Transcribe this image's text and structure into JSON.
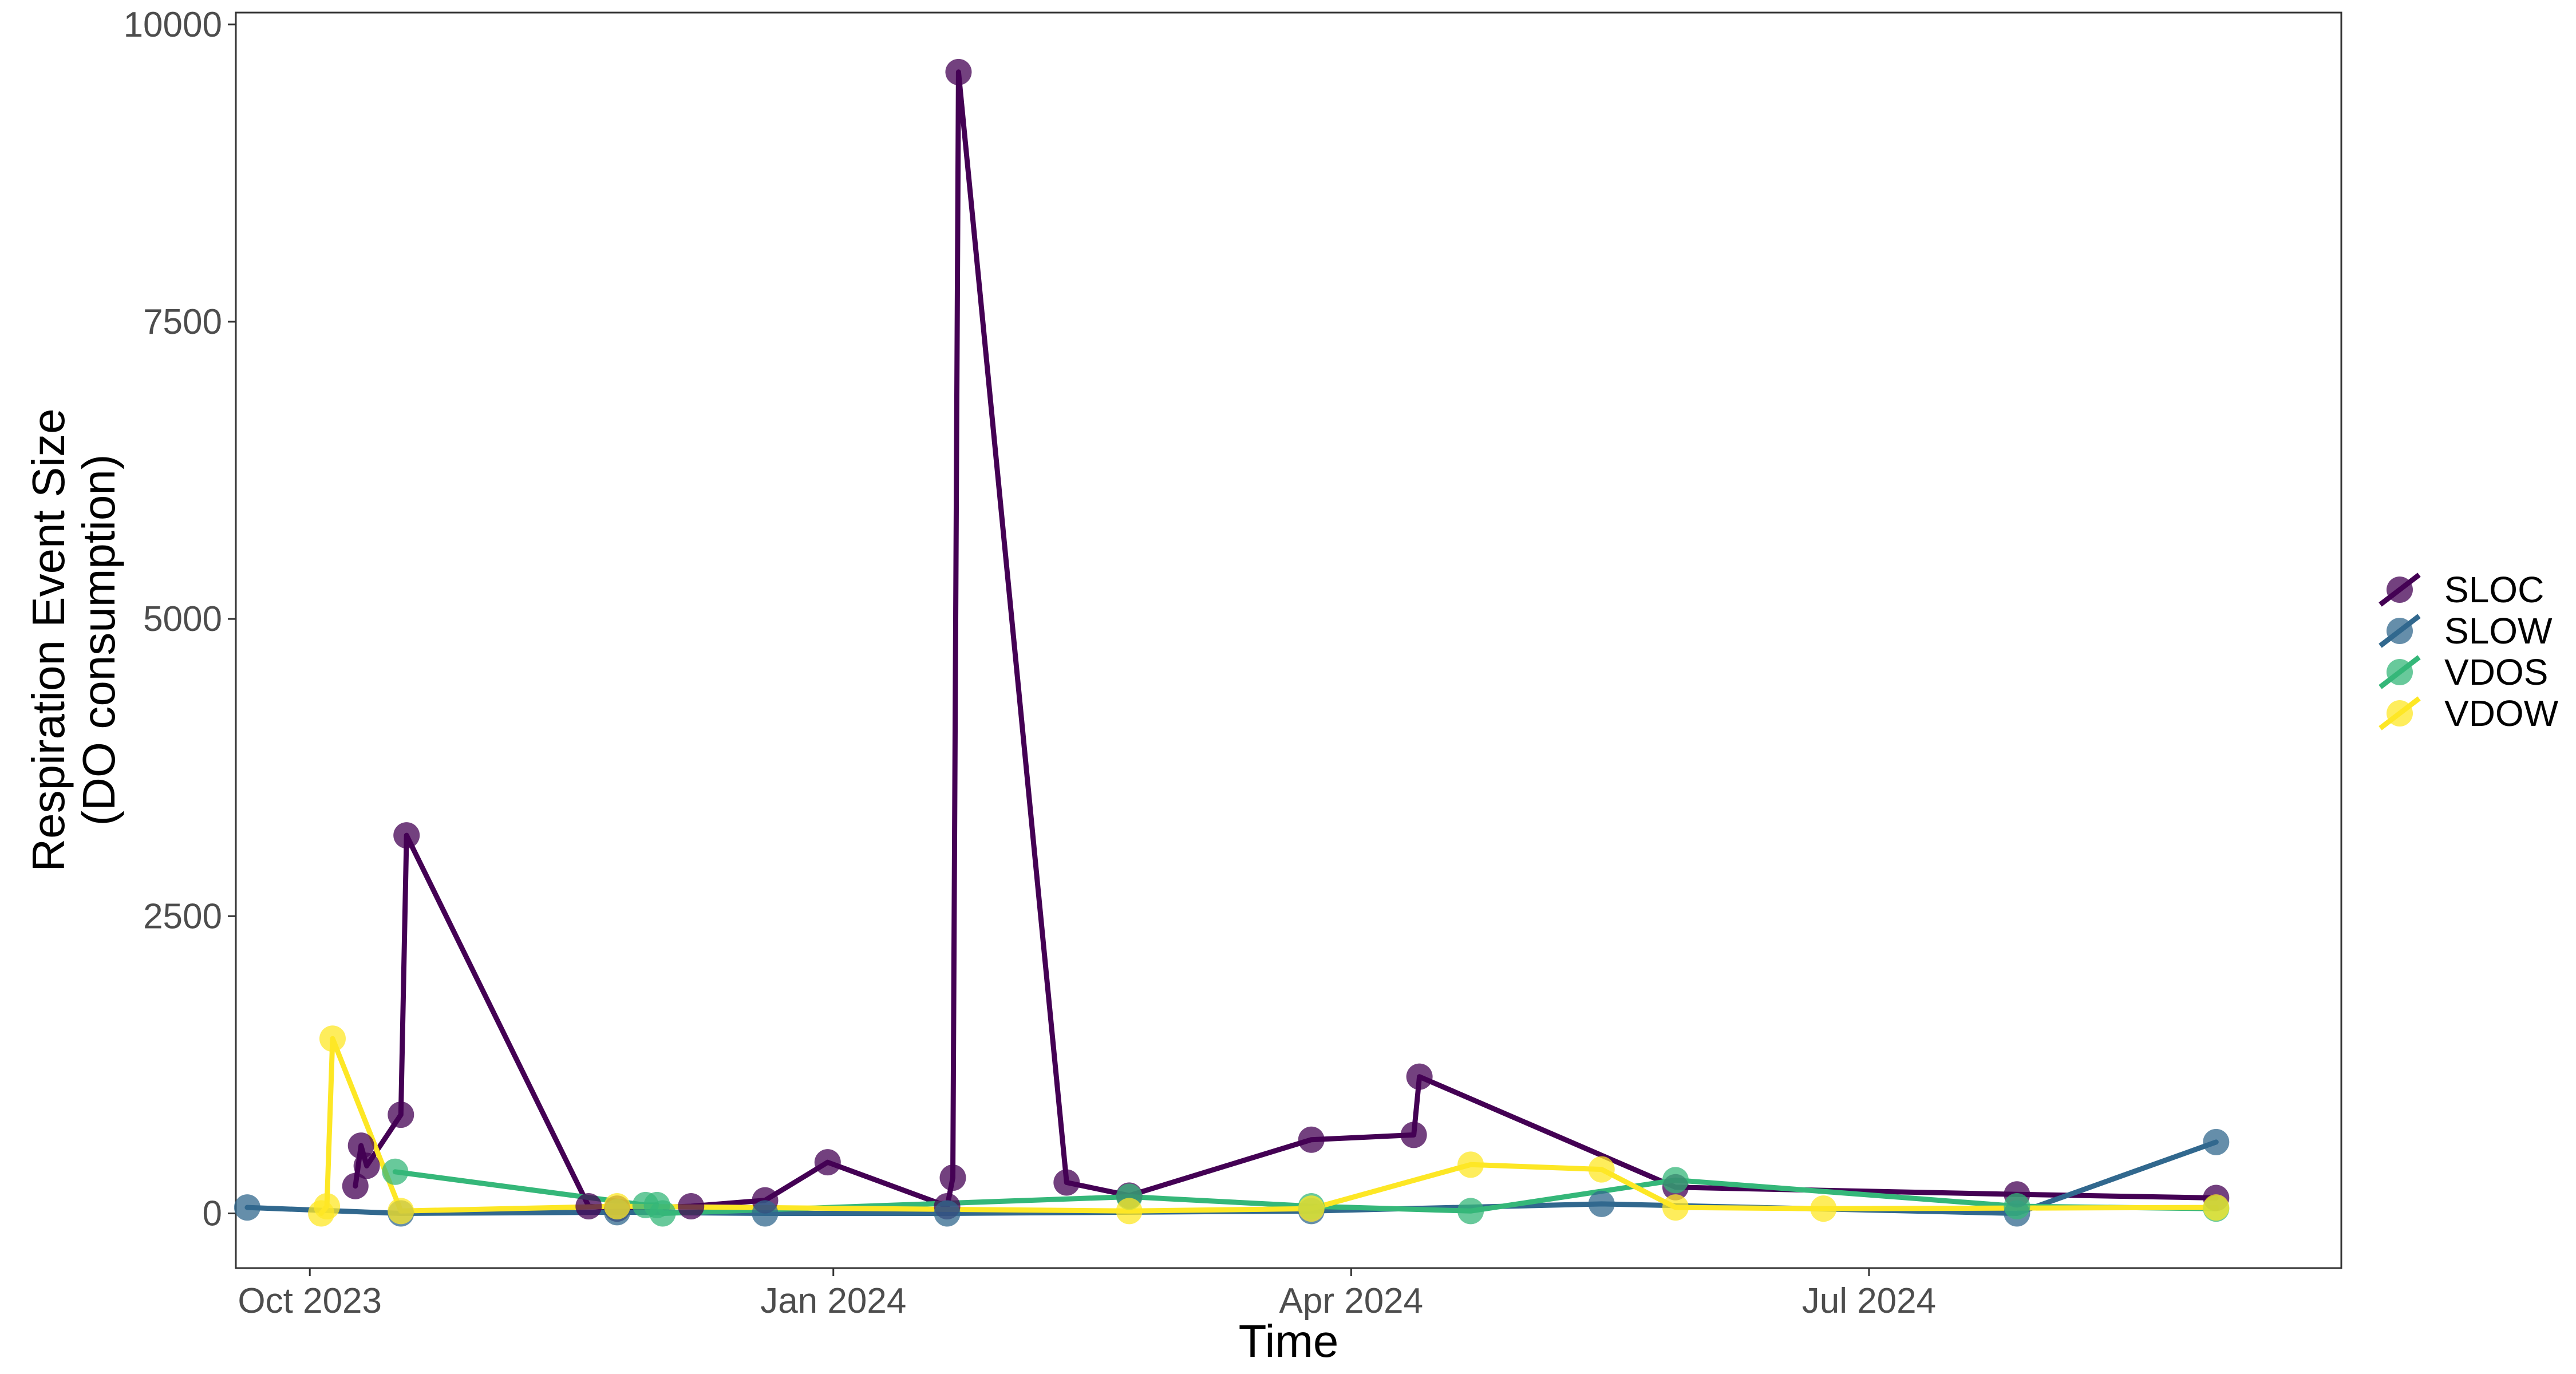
{
  "chart_data": {
    "type": "line",
    "xlabel": "Time",
    "ylabel_lines": [
      "Respiration Event Size",
      "(DO consumption)"
    ],
    "x_ticks": [
      "2023-10-01",
      "2024-01-01",
      "2024-04-01",
      "2024-07-01"
    ],
    "x_tick_labels": [
      "Oct 2023",
      "Jan 2024",
      "Apr 2024",
      "Jul 2024"
    ],
    "xlim": [
      "2023-09-18",
      "2024-09-22"
    ],
    "y_ticks": [
      0,
      2500,
      5000,
      7500,
      10000
    ],
    "y_tick_labels": [
      "0",
      "2500",
      "5000",
      "7500",
      "10000"
    ],
    "ylim": [
      -460,
      10100
    ],
    "grid": false,
    "legend_position": "right",
    "series": [
      {
        "name": "SLOC",
        "color": "#440154",
        "points": [
          [
            "2023-10-09",
            230
          ],
          [
            "2023-10-10",
            570
          ],
          [
            "2023-10-11",
            400
          ],
          [
            "2023-10-17",
            830
          ],
          [
            "2023-10-18",
            3180
          ],
          [
            "2023-11-19",
            60
          ],
          [
            "2023-11-24",
            40
          ],
          [
            "2023-12-07",
            60
          ],
          [
            "2023-12-20",
            110
          ],
          [
            "2023-12-31",
            430
          ],
          [
            "2024-01-21",
            60
          ],
          [
            "2024-01-22",
            300
          ],
          [
            "2024-01-23",
            9600
          ],
          [
            "2024-02-11",
            260
          ],
          [
            "2024-02-22",
            150
          ],
          [
            "2024-03-25",
            620
          ],
          [
            "2024-04-12",
            660
          ],
          [
            "2024-04-13",
            1150
          ],
          [
            "2024-05-28",
            220
          ],
          [
            "2024-07-27",
            160
          ],
          [
            "2024-08-31",
            130
          ]
        ]
      },
      {
        "name": "SLOW",
        "color": "#31688E",
        "points": [
          [
            "2023-09-20",
            50
          ],
          [
            "2023-10-17",
            0
          ],
          [
            "2023-11-24",
            10
          ],
          [
            "2023-12-20",
            0
          ],
          [
            "2024-01-21",
            0
          ],
          [
            "2024-03-25",
            20
          ],
          [
            "2024-05-15",
            80
          ],
          [
            "2024-07-27",
            0
          ],
          [
            "2024-08-31",
            600
          ]
        ]
      },
      {
        "name": "VDOS",
        "color": "#35B779",
        "points": [
          [
            "2023-10-16",
            350
          ],
          [
            "2023-11-29",
            70
          ],
          [
            "2023-12-01",
            70
          ],
          [
            "2023-12-02",
            0
          ],
          [
            "2024-02-22",
            140
          ],
          [
            "2024-03-25",
            60
          ],
          [
            "2024-04-22",
            20
          ],
          [
            "2024-05-28",
            280
          ],
          [
            "2024-07-27",
            60
          ],
          [
            "2024-08-31",
            40
          ]
        ]
      },
      {
        "name": "VDOW",
        "color": "#FDE725",
        "points": [
          [
            "2023-10-03",
            0
          ],
          [
            "2023-10-04",
            60
          ],
          [
            "2023-10-05",
            1470
          ],
          [
            "2023-10-17",
            20
          ],
          [
            "2023-11-24",
            60
          ],
          [
            "2024-02-22",
            20
          ],
          [
            "2024-03-25",
            40
          ],
          [
            "2024-04-22",
            410
          ],
          [
            "2024-05-15",
            370
          ],
          [
            "2024-05-28",
            50
          ],
          [
            "2024-06-23",
            40
          ],
          [
            "2024-08-31",
            50
          ]
        ]
      }
    ]
  }
}
